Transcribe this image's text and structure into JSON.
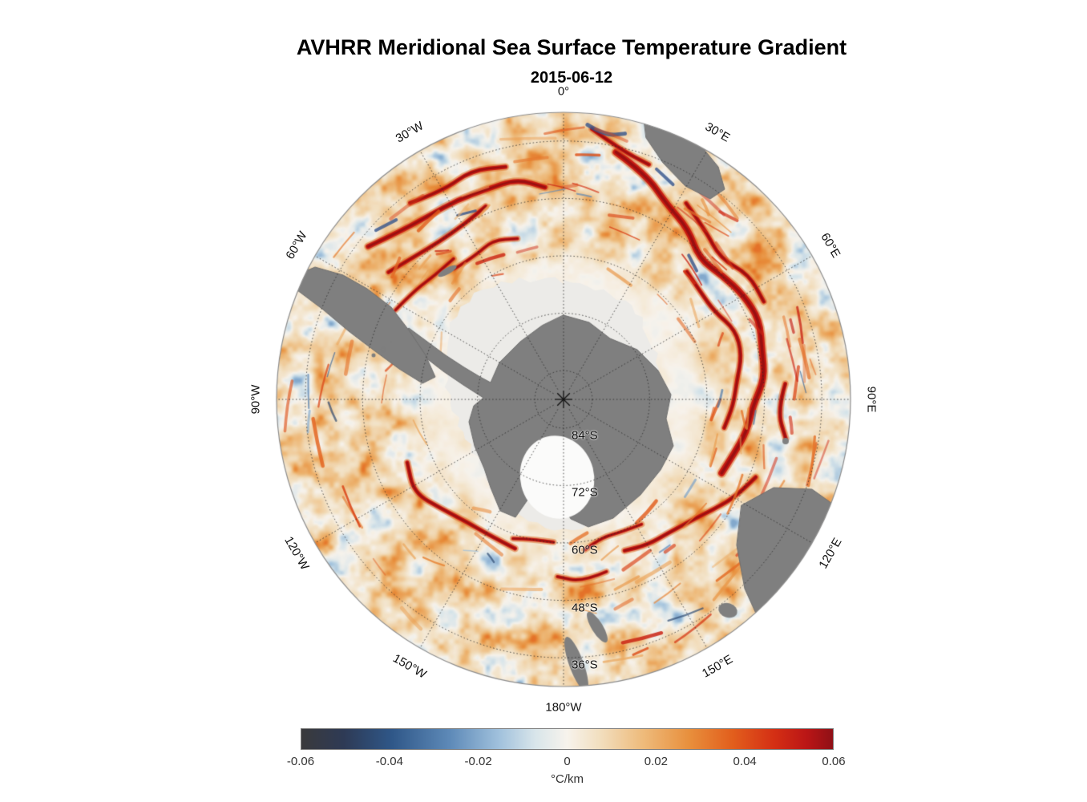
{
  "header": {
    "title": "AVHRR Meridional Sea Surface Temperature Gradient",
    "date": "2015-06-12"
  },
  "map": {
    "meridian_labels": [
      {
        "text": "0°",
        "deg": 0
      },
      {
        "text": "30°E",
        "deg": 30
      },
      {
        "text": "60°E",
        "deg": 60
      },
      {
        "text": "90°E",
        "deg": 90
      },
      {
        "text": "120°E",
        "deg": 120
      },
      {
        "text": "150°E",
        "deg": 150
      },
      {
        "text": "180°W",
        "deg": 180
      },
      {
        "text": "150°W",
        "deg": 210
      },
      {
        "text": "120°W",
        "deg": 240
      },
      {
        "text": "90°W",
        "deg": 270
      },
      {
        "text": "60°W",
        "deg": 300
      },
      {
        "text": "30°W",
        "deg": 330
      }
    ],
    "latitude_labels": [
      {
        "text": "84°S",
        "f": 0.1
      },
      {
        "text": "72°S",
        "f": 0.3
      },
      {
        "text": "60°S",
        "f": 0.5
      },
      {
        "text": "48°S",
        "f": 0.7
      },
      {
        "text": "36°S",
        "f": 0.9
      }
    ]
  },
  "colorbar": {
    "label": "°C/km",
    "ticks": [
      "-0.06",
      "-0.04",
      "-0.02",
      "0",
      "0.02",
      "0.04",
      "0.06"
    ],
    "stops": [
      [
        0,
        "#3a3a3c"
      ],
      [
        0.08,
        "#2e3a55"
      ],
      [
        0.17,
        "#2f5788"
      ],
      [
        0.28,
        "#5e8ab8"
      ],
      [
        0.37,
        "#9fc0dc"
      ],
      [
        0.44,
        "#d8e5ea"
      ],
      [
        0.5,
        "#f7f3ec"
      ],
      [
        0.56,
        "#f2dfc0"
      ],
      [
        0.64,
        "#eebc7d"
      ],
      [
        0.73,
        "#e88f3c"
      ],
      [
        0.81,
        "#e25f1d"
      ],
      [
        0.89,
        "#d42f14"
      ],
      [
        0.95,
        "#bb1616"
      ],
      [
        1,
        "#8f1016"
      ]
    ]
  },
  "colors": {
    "land": "#7f7f7f",
    "land_edge": "#6f6f6f",
    "ice": "#ecebe8",
    "ice_shelf": "#fbfbfa",
    "graticule": "#2a2a2a",
    "map_outline": "#8c8c8c",
    "pole_marker": "#111111"
  },
  "chart_data": {
    "type": "heatmap",
    "title": "AVHRR Meridional Sea Surface Temperature Gradient",
    "subtitle": "2015-06-12",
    "projection": "South polar stereographic, pole-centered, spanning 90°S to ~30°S",
    "variable": "Meridional sea surface temperature gradient",
    "units": "°C/km",
    "value_range": [
      -0.06,
      0.06
    ],
    "colorbar_ticks": [
      -0.06,
      -0.04,
      -0.02,
      0,
      0.02,
      0.04,
      0.06
    ],
    "colorbar_orientation": "horizontal-bottom",
    "meridian_ticks": [
      "0°",
      "30°E",
      "60°E",
      "90°E",
      "120°E",
      "150°E",
      "180°W",
      "150°W",
      "120°W",
      "90°W",
      "60°W",
      "30°W"
    ],
    "latitude_ring_ticks": [
      "84°S",
      "72°S",
      "60°S",
      "48°S",
      "36°S"
    ],
    "grid": "dotted graticule every 30° longitude and 12° latitude, pole marked with asterisk",
    "features": [
      "Antarctica shown as gray land at center with white Ross Ice Shelf patch",
      "pale gray sea-ice / no-data region surrounding Antarctica, largest toward the Weddell (30°–60°W) and Ross (180°) sectors",
      "gray land masses: southern South America, southern Africa, Australia, Tasmania, New Zealand, Kerguelen",
      "predominantly weak positive (cream/orange) gradients across the Southern Ocean",
      "strong positive (red) gradient filaments along Antarctic Circumpolar Current fronts, Agulhas Return Current (20°E–110°E) and Brazil–Malvinas confluence (55°W–5°W)",
      "scattered weak negative (blue) patches adjacent to the strong fronts"
    ]
  }
}
